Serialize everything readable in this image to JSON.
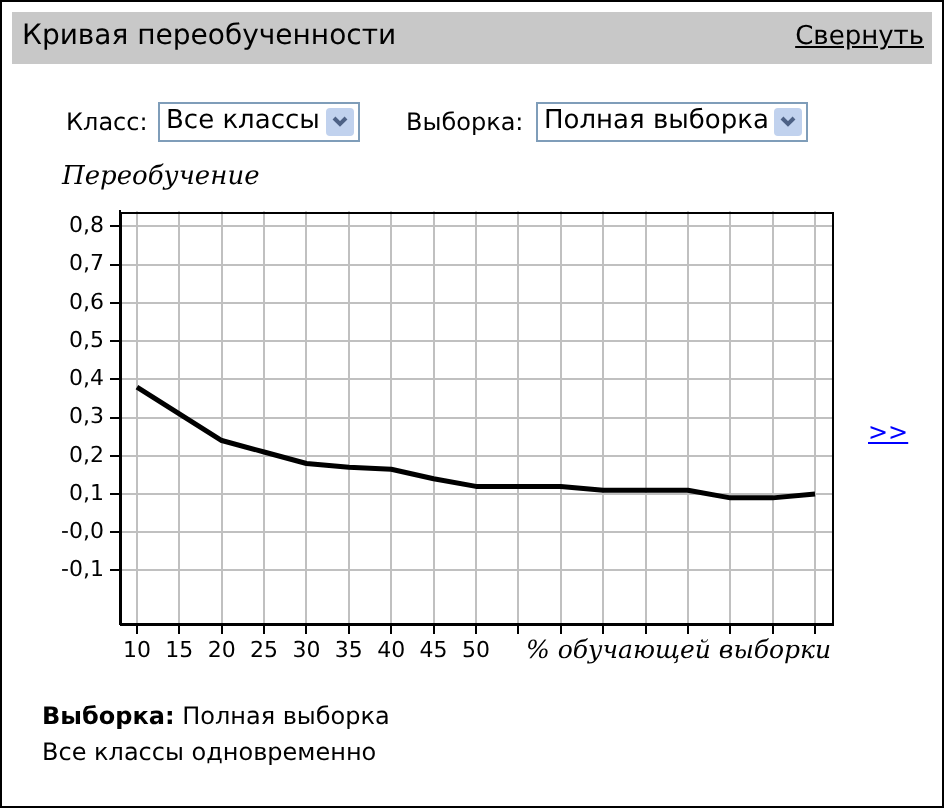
{
  "chart_data": {
    "type": "line",
    "title": "Кривая переобученности",
    "xlabel": "% обучающей выборки",
    "ylabel": "Переобучение",
    "x": [
      10,
      15,
      20,
      25,
      30,
      35,
      40,
      45,
      50,
      55,
      60,
      65,
      70,
      75,
      80,
      85,
      90
    ],
    "series": [
      {
        "color": "#000000",
        "values": [
          0.38,
          0.31,
          0.24,
          0.21,
          0.18,
          0.17,
          0.165,
          0.14,
          0.12,
          0.12,
          0.12,
          0.11,
          0.11,
          0.11,
          0.09,
          0.09,
          0.1
        ]
      }
    ],
    "xlim": [
      8,
      92
    ],
    "xticks": [
      10,
      15,
      20,
      25,
      30,
      35,
      40,
      45,
      50,
      {
        "value": 55,
        "label": null
      },
      {
        "value": 60,
        "label": null
      },
      {
        "value": 65,
        "label": null
      },
      {
        "value": 70,
        "label": null
      },
      {
        "value": 75,
        "label": null
      },
      {
        "value": 80,
        "label": null
      },
      {
        "value": 85,
        "label": null
      },
      {
        "value": 90,
        "label": null
      }
    ],
    "ylim": [
      -0.24,
      0.84
    ],
    "yticks": [
      {
        "value": -0.1,
        "label": "-0,1"
      },
      {
        "value": 0,
        "label": "-0,0"
      },
      {
        "value": 0.1,
        "label": "0,1"
      },
      {
        "value": 0.2,
        "label": "0,2"
      },
      {
        "value": 0.3,
        "label": "0,3"
      },
      {
        "value": 0.4,
        "label": "0,4"
      },
      {
        "value": 0.5,
        "label": "0,5"
      },
      {
        "value": 0.6,
        "label": "0,6"
      },
      {
        "value": 0.7,
        "label": "0,7"
      },
      {
        "value": 0.8,
        "label": "0,8"
      }
    ],
    "grid": true,
    "legend": false,
    "marker": "none",
    "line_style": "solid",
    "annotations": [
      "Свернуть",
      "Класс:",
      "Все классы",
      "Выборка:",
      "Полная выборка",
      ">>",
      "Выборка:",
      "Полная выборка",
      "Все классы одновременно"
    ]
  }
}
